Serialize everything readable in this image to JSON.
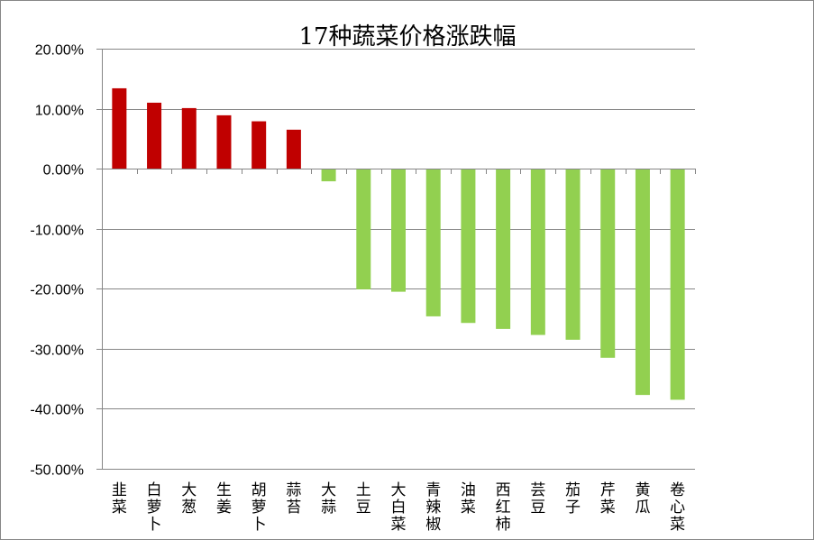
{
  "chart_data": {
    "type": "bar",
    "title": "17种蔬菜价格涨跌幅",
    "xlabel": "",
    "ylabel": "",
    "ylim": [
      -0.5,
      0.2
    ],
    "yticks": [
      0.2,
      0.1,
      0.0,
      -0.1,
      -0.2,
      -0.3,
      -0.4,
      -0.5
    ],
    "ytick_labels": [
      "20.00%",
      "10.00%",
      "0.00%",
      "-10.00%",
      "-20.00%",
      "-30.00%",
      "-40.00%",
      "-50.00%"
    ],
    "grid": true,
    "legend": "none",
    "categories": [
      "韭菜",
      "白萝卜",
      "大葱",
      "生姜",
      "胡萝卜",
      "蒜苔",
      "大蒜",
      "土豆",
      "大白菜",
      "青辣椒",
      "油菜",
      "西红柿",
      "芸豆",
      "茄子",
      "芹菜",
      "黄瓜",
      "卷心菜"
    ],
    "values": [
      0.134,
      0.11,
      0.101,
      0.089,
      0.079,
      0.065,
      -0.021,
      -0.201,
      -0.205,
      -0.246,
      -0.257,
      -0.267,
      -0.277,
      -0.285,
      -0.315,
      -0.377,
      -0.385
    ],
    "colors": {
      "positive": "#C00000",
      "negative": "#92D050",
      "grid": "#868686",
      "axis": "#868686"
    }
  }
}
